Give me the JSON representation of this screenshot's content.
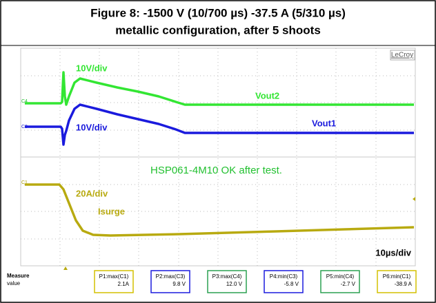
{
  "figure": {
    "title": [
      "Figure 8: -1500 V (10/700 µs) -37.5 A (5/310 µs)",
      "metallic configuration, after 5 shoots"
    ],
    "brand": "LeCroy",
    "channels": [
      "C4",
      "C3",
      "C1"
    ],
    "traces": {
      "vout2_scale": "10V/div",
      "vout2_name": "Vout2",
      "vout1_scale": "10V/div",
      "vout1_name": "Vout1",
      "isurge_scale": "20A/div",
      "isurge_name": "Isurge"
    },
    "annotation": "HSP061-4M10 OK after test.",
    "timebase": "10µs/div",
    "measure_label": "Measure",
    "value_label": "value",
    "measurements": [
      {
        "name": "P1:max(C1)",
        "value": "2.1A"
      },
      {
        "name": "P2:max(C3)",
        "value": "9.8 V"
      },
      {
        "name": "P3:max(C4)",
        "value": "12.0 V"
      },
      {
        "name": "P4:min(C3)",
        "value": "-5.8 V"
      },
      {
        "name": "P5:min(C4)",
        "value": "-2.7 V"
      },
      {
        "name": "P6:min(C1)",
        "value": "-38.9 A"
      }
    ]
  }
}
